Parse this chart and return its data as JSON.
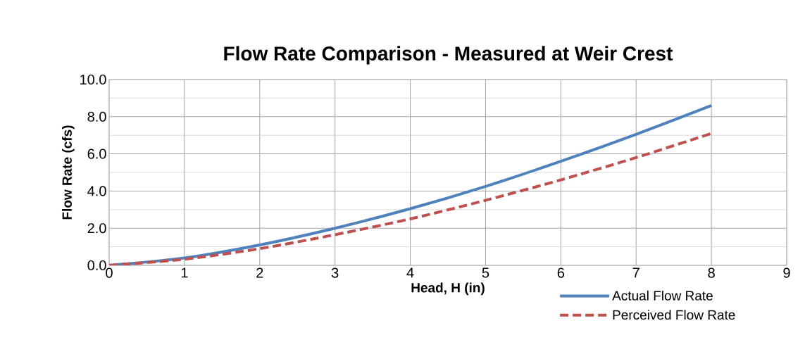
{
  "chart_data": {
    "type": "line",
    "title": "Flow Rate Comparison - Measured at Weir Crest",
    "xlabel": "Head, H (in)",
    "ylabel": "Flow Rate (cfs)",
    "x": [
      0,
      1,
      2,
      3,
      4,
      5,
      6,
      7,
      8
    ],
    "series": [
      {
        "name": "Actual Flow Rate",
        "color": "#4f81bd",
        "line_style": "solid",
        "values": [
          0,
          0.4,
          1.1,
          2.0,
          3.05,
          4.25,
          5.6,
          7.05,
          8.6
        ]
      },
      {
        "name": "Perceived Flow Rate",
        "color": "#c0504d",
        "line_style": "dashed",
        "values": [
          0,
          0.33,
          0.9,
          1.65,
          2.5,
          3.5,
          4.6,
          5.8,
          7.1
        ]
      }
    ],
    "xlim": [
      0,
      9
    ],
    "xticks": [
      0,
      1,
      2,
      3,
      4,
      5,
      6,
      7,
      8,
      9
    ],
    "ylim": [
      0,
      10
    ],
    "yticks": [
      {
        "value": 0,
        "label": "0.0"
      },
      {
        "value": 2,
        "label": "2.0"
      },
      {
        "value": 4,
        "label": "4.0"
      },
      {
        "value": 6,
        "label": "6.0"
      },
      {
        "value": 8,
        "label": "8.0"
      },
      {
        "value": 10,
        "label": "10.0"
      }
    ],
    "grid": true,
    "legend": "bottom right",
    "marker": "none"
  }
}
